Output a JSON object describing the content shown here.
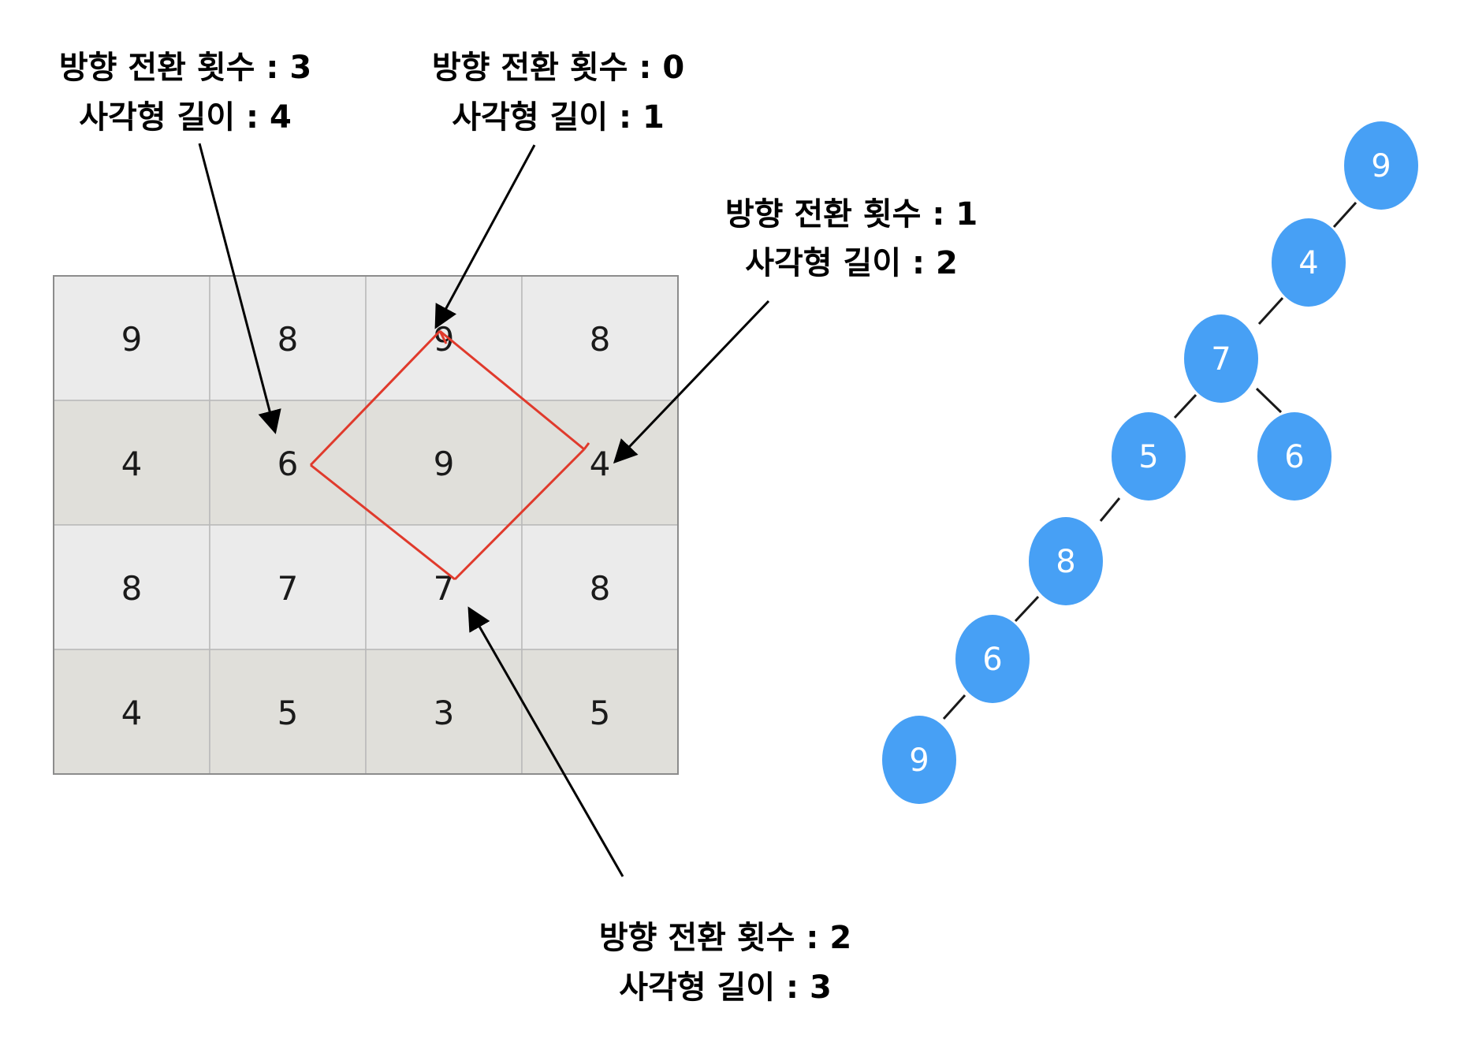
{
  "grid": {
    "rows": [
      [
        "9",
        "8",
        "9",
        "8"
      ],
      [
        "4",
        "6",
        "9",
        "4"
      ],
      [
        "8",
        "7",
        "7",
        "8"
      ],
      [
        "4",
        "5",
        "3",
        "5"
      ]
    ],
    "colors": {
      "light": "#ebebeb",
      "dark": "#e0dfda",
      "border": "#8c8c8c"
    }
  },
  "annotations": [
    {
      "line1": "방향 전환 횟수 : 3",
      "line2": "사각형 길이 : 4"
    },
    {
      "line1": "방향 전환 횟수 : 0",
      "line2": "사각형 길이 : 1"
    },
    {
      "line1": "방향 전환 횟수 : 1",
      "line2": "사각형 길이 : 2"
    },
    {
      "line1": "방향 전환 횟수 : 2",
      "line2": "사각형 길이 : 3"
    }
  ],
  "tree": {
    "nodes": [
      "9",
      "4",
      "7",
      "5",
      "6",
      "8",
      "6",
      "9"
    ],
    "node_color": "#47a0f5"
  },
  "diamond_color": "#e03a2c"
}
